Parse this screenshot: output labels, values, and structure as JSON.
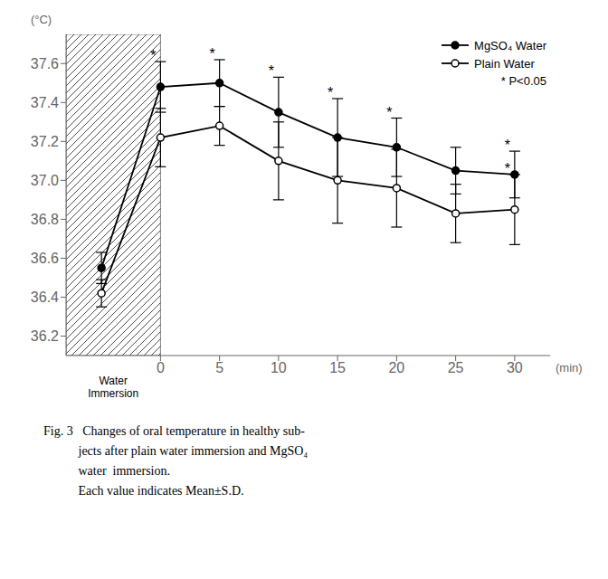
{
  "chart_data": {
    "type": "line",
    "y_label": "(°C)",
    "x_label": "(min)",
    "x": [
      -5,
      0,
      5,
      10,
      15,
      20,
      25,
      30
    ],
    "series": [
      {
        "name": "MgSO₄ Water",
        "color": "#000000",
        "marker": "filled_circle",
        "values": [
          36.55,
          37.48,
          37.5,
          37.35,
          37.22,
          37.17,
          37.05,
          37.03
        ],
        "errors": [
          0.08,
          0.13,
          0.12,
          0.18,
          0.2,
          0.15,
          0.12,
          0.12
        ],
        "significant_x": [
          0,
          5,
          10,
          15,
          20,
          30
        ]
      },
      {
        "name": "Plain Water",
        "color": "#000000",
        "marker": "open_circle",
        "values": [
          36.42,
          37.22,
          37.28,
          37.1,
          37.0,
          36.96,
          36.83,
          36.85
        ],
        "errors": [
          0.07,
          0.15,
          0.1,
          0.2,
          0.22,
          0.2,
          0.15,
          0.18
        ],
        "significant_x": [
          30
        ]
      }
    ],
    "significance_mark": "*",
    "significance_note": "* P<0.05",
    "shaded_region": {
      "x_start": -8,
      "x_end": 0,
      "label": "Water\nImmersion"
    },
    "xlim": [
      -8,
      33
    ],
    "xticks": [
      0,
      5,
      10,
      15,
      20,
      25,
      30
    ],
    "ylim": [
      36.1,
      37.75
    ],
    "yticks": [
      36.2,
      36.4,
      36.6,
      36.8,
      {
        "value": 37.0,
        "label": "37.0"
      },
      37.2,
      37.4,
      37.6
    ],
    "grid": false,
    "legend": "upper right",
    "caption": [
      "Fig. 3   Changes of oral temperature in healthy sub-",
      "           jects after plain water immersion and MgSO₄",
      "           water  immersion.",
      "           Each value indicates Mean±S.D."
    ]
  }
}
